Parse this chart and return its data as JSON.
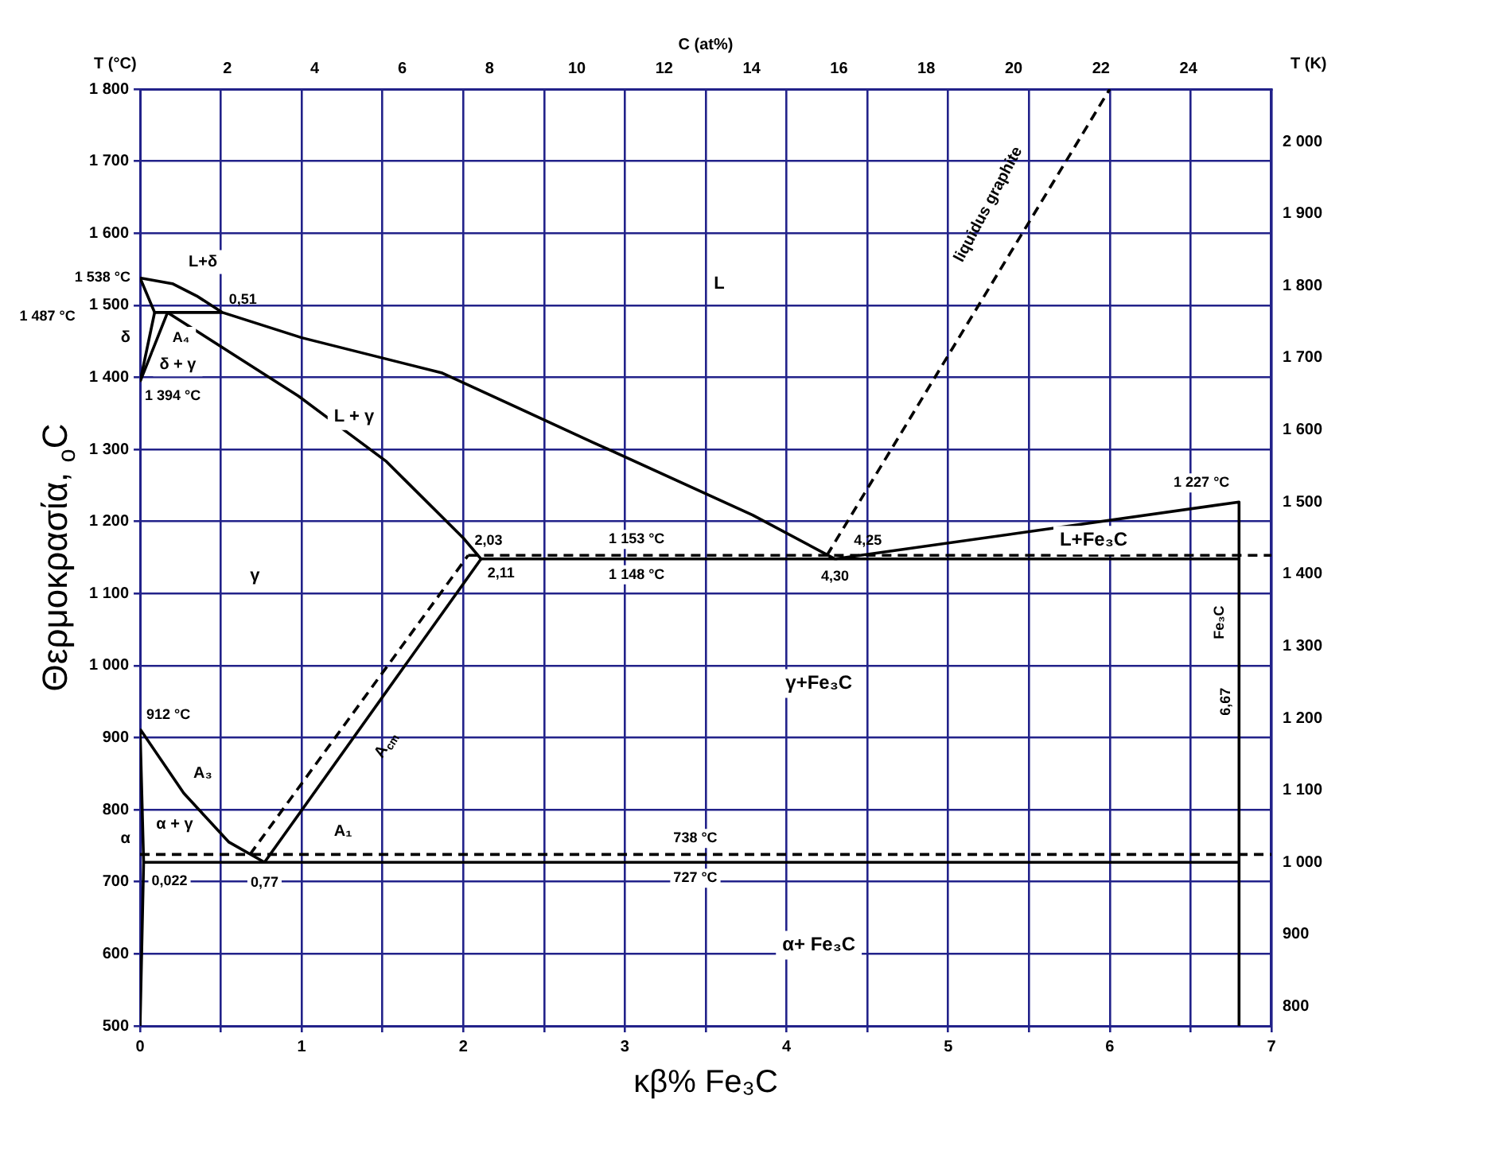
{
  "chart_data": {
    "type": "line",
    "xlabel": "κβ% Fe₃C",
    "ylabel": "Θερμοκρασία, $_{o}$C",
    "x2label": "C (at%)",
    "y2label": "T (K)",
    "xlim": [
      0,
      7
    ],
    "xticks": [
      0,
      {
        "value": 0.5,
        "label": null
      },
      1,
      {
        "value": 1.5,
        "label": null
      },
      2,
      {
        "value": 2.5,
        "label": null
      },
      3,
      {
        "value": 3.5,
        "label": null
      },
      4,
      {
        "value": 4.5,
        "label": null
      },
      5,
      {
        "value": 5.5,
        "label": null
      },
      6,
      {
        "value": 6.5,
        "label": null
      },
      7
    ],
    "ylim": [
      500,
      1800
    ],
    "yticks": [
      500,
      600,
      700,
      800,
      900,
      {
        "value": 1000,
        "label": "1 000"
      },
      {
        "value": 1100,
        "label": "1 100"
      },
      {
        "value": 1200,
        "label": "1 200"
      },
      {
        "value": 1300,
        "label": "1 300"
      },
      {
        "value": 1400,
        "label": "1 400"
      },
      {
        "value": 1500,
        "label": "1 500"
      },
      {
        "value": 1600,
        "label": "1 600"
      },
      {
        "value": 1700,
        "label": "1 700"
      },
      {
        "value": 1800,
        "label": "1 800"
      }
    ],
    "x2lim": [
      0,
      25.9
    ],
    "x2ticks": [
      2,
      4,
      6,
      8,
      10,
      12,
      14,
      16,
      18,
      20,
      22,
      24
    ],
    "y2lim": [
      773,
      2073
    ],
    "y2ticks": [
      800,
      900,
      {
        "value": 1000,
        "label": "1 000"
      },
      {
        "value": 1100,
        "label": "1 100"
      },
      {
        "value": 1200,
        "label": "1 200"
      },
      {
        "value": 1300,
        "label": "1 300"
      },
      {
        "value": 1400,
        "label": "1 400"
      },
      {
        "value": 1500,
        "label": "1 500"
      },
      {
        "value": 1600,
        "label": "1 600"
      },
      {
        "value": 1700,
        "label": "1 700"
      },
      {
        "value": 1800,
        "label": "1 800"
      },
      {
        "value": 1900,
        "label": "1 900"
      },
      {
        "value": 2000,
        "label": "2 000"
      }
    ],
    "grid": true,
    "legend": false,
    "marker": "none",
    "line_style": "solid",
    "series": [
      {
        "color": "#000000",
        "x": [
          0,
          0.2,
          0.35,
          0.51,
          1,
          1.87,
          2.8,
          3.79,
          4.3
        ],
        "values": [
          1538,
          1530,
          1513,
          1490,
          1455,
          1406,
          1310,
          1209,
          1148
        ]
      },
      {
        "color": "#000000",
        "x": [
          0,
          0.09,
          0.51
        ],
        "values": [
          1538,
          1490,
          1490
        ]
      },
      {
        "color": "#000000",
        "x": [
          0,
          0.09
        ],
        "values": [
          1394,
          1490
        ]
      },
      {
        "color": "#000000",
        "x": [
          0,
          0.17,
          0.98,
          1.52,
          2.0,
          2.11
        ],
        "values": [
          1394,
          1490,
          1374,
          1284,
          1177,
          1148
        ]
      },
      {
        "color": "#000000",
        "x": [
          2.11,
          6.8
        ],
        "values": [
          1148,
          1148
        ]
      },
      {
        "color": "#000000",
        "line_style": "dashed",
        "x": [
          2.03,
          7
        ],
        "values": [
          1153,
          1153
        ]
      },
      {
        "color": "#000000",
        "x": [
          0.77,
          2.11
        ],
        "values": [
          727,
          1148
        ]
      },
      {
        "color": "#000000",
        "line_style": "dashed",
        "x": [
          0.68,
          2.03
        ],
        "values": [
          738,
          1153
        ]
      },
      {
        "color": "#000000",
        "x": [
          4.3,
          6.8,
          6.8
        ],
        "values": [
          1148,
          1227,
          500
        ]
      },
      {
        "color": "#000000",
        "line_style": "dashed",
        "x": [
          4.25,
          6.0
        ],
        "values": [
          1153,
          1800
        ]
      },
      {
        "color": "#000000",
        "x": [
          0,
          0.27,
          0.55,
          0.77
        ],
        "values": [
          912,
          823,
          755,
          727
        ]
      },
      {
        "color": "#000000",
        "x": [
          0.022,
          6.8
        ],
        "values": [
          727,
          727
        ]
      },
      {
        "color": "#000000",
        "line_style": "dashed",
        "x": [
          0,
          7
        ],
        "values": [
          738,
          738
        ]
      },
      {
        "color": "#000000",
        "x": [
          0,
          0.022,
          0
        ],
        "values": [
          500,
          727,
          912
        ]
      }
    ],
    "annotations": [
      {
        "text": "0,51",
        "x": 0.51,
        "y": 1490
      },
      {
        "text": "1 538 °C",
        "x": 0,
        "y": 1538
      },
      {
        "text": "1 394 °C",
        "x": 0,
        "y": 1394
      },
      {
        "text": "2,03",
        "x": 2.03,
        "y": 1153
      },
      {
        "text": "2,11",
        "x": 2.11,
        "y": 1148
      },
      {
        "text": "1 153 °C",
        "x": 2.9,
        "y": 1153
      },
      {
        "text": "1 148 °C",
        "x": 2.9,
        "y": 1148
      },
      {
        "text": "4,25",
        "x": 4.25,
        "y": 1153
      },
      {
        "text": "4,30",
        "x": 4.3,
        "y": 1148
      },
      {
        "text": "1 227 °C",
        "x": 6.8,
        "y": 1227
      },
      {
        "text": "6,67",
        "x": 6.8,
        "y": 950
      },
      {
        "text": "912 °C",
        "x": 0,
        "y": 912
      },
      {
        "text": "738 °C",
        "x": 3.3,
        "y": 738
      },
      {
        "text": "727 °C",
        "x": 3.3,
        "y": 727
      },
      {
        "text": "0,022",
        "x": 0.022,
        "y": 727
      },
      {
        "text": "0,77",
        "x": 0.77,
        "y": 727
      },
      "T (°C)",
      "1 487 °C",
      "L",
      "L+δ",
      "δ",
      "A₄",
      "δ + γ",
      "L + γ",
      "γ",
      "L+Fe₃C",
      "γ+Fe₃C",
      "Fe₃C",
      "A₃",
      "α + γ",
      "A$_{cm}$",
      "A₁",
      "α",
      "α+ Fe₃C",
      "liquidus graphite"
    ]
  }
}
